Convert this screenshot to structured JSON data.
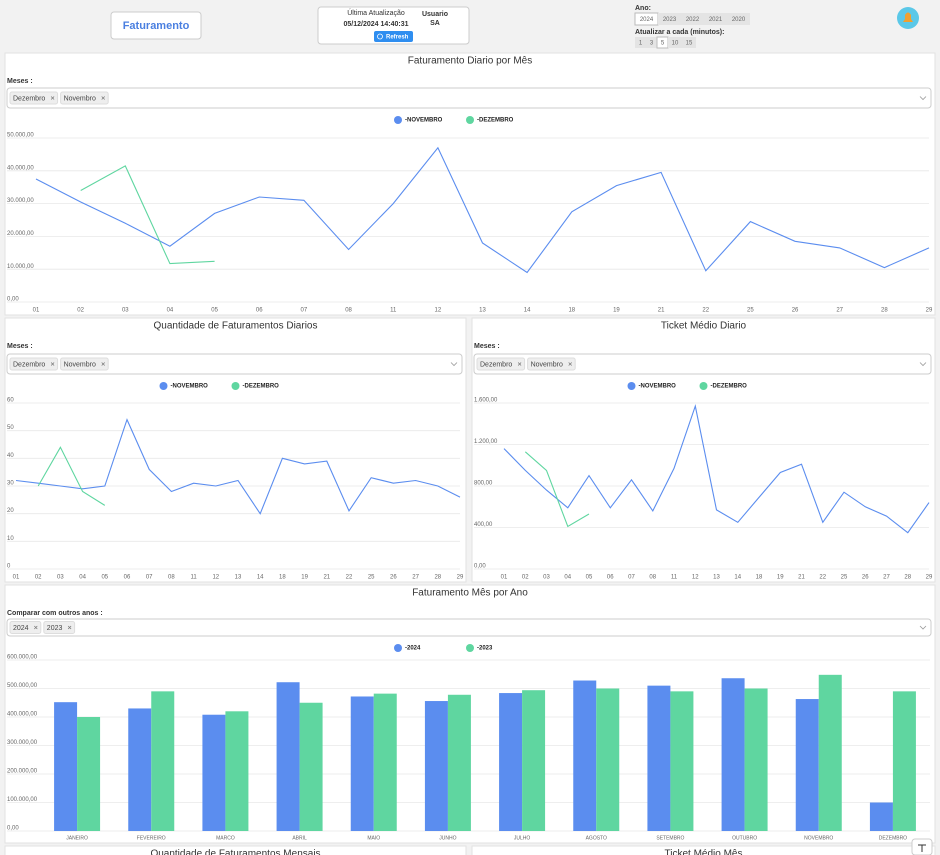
{
  "header": {
    "app_button": "Faturamento",
    "update_label": "Última Atualização",
    "update_time": "05/12/2024 14:40:31",
    "user_label": "Usuario",
    "user": "SA",
    "refresh": "Refresh",
    "year_label": "Ano:",
    "years": [
      "2024",
      "2023",
      "2022",
      "2021",
      "2020"
    ],
    "year_selected": "2024",
    "interval_label": "Atualizar a cada (minutos):",
    "intervals": [
      1,
      3,
      5,
      10,
      15
    ],
    "interval_selected": 5
  },
  "chart_data": [
    {
      "type": "line",
      "title": "Faturamento Diario por Mês",
      "filter_label": "Meses :",
      "filter_chips": [
        "Dezembro",
        "Novembro"
      ],
      "categories": [
        "01",
        "02",
        "03",
        "04",
        "05",
        "06",
        "07",
        "08",
        "11",
        "12",
        "13",
        "14",
        "18",
        "19",
        "21",
        "22",
        "25",
        "26",
        "27",
        "28",
        "29"
      ],
      "series": [
        {
          "name": "-NOVEMBRO",
          "color": "#5b8def",
          "values": [
            37500,
            30500,
            24000,
            17000,
            27000,
            32000,
            31000,
            16000,
            30000,
            47000,
            18000,
            9000,
            27500,
            35500,
            39500,
            9500,
            24500,
            18500,
            16500,
            10500,
            16500
          ]
        },
        {
          "name": "-DEZEMBRO",
          "color": "#5fd6a0",
          "values": [
            null,
            34000,
            41500,
            11700,
            12400,
            null,
            null,
            null,
            null,
            null,
            null,
            null,
            null,
            null,
            null,
            null,
            null,
            null,
            null,
            null,
            null
          ]
        }
      ],
      "ylim": [
        0,
        50000
      ],
      "yticks": [
        {
          "value": 0,
          "label": "0,00"
        },
        {
          "value": 10000,
          "label": "10.000,00"
        },
        {
          "value": 20000,
          "label": "20.000,00"
        },
        {
          "value": 30000,
          "label": "30.000,00"
        },
        {
          "value": 40000,
          "label": "40.000,00"
        },
        {
          "value": 50000,
          "label": "50.000,00"
        }
      ],
      "grid": true,
      "legend": "top"
    },
    {
      "type": "line",
      "title": "Quantidade de Faturamentos Diarios",
      "filter_label": "Meses :",
      "filter_chips": [
        "Dezembro",
        "Novembro"
      ],
      "categories": [
        "01",
        "02",
        "03",
        "04",
        "05",
        "06",
        "07",
        "08",
        "11",
        "12",
        "13",
        "14",
        "18",
        "19",
        "21",
        "22",
        "25",
        "26",
        "27",
        "28",
        "29"
      ],
      "series": [
        {
          "name": "-NOVEMBRO",
          "color": "#5b8def",
          "values": [
            32,
            31,
            30,
            29,
            30,
            54,
            36,
            28,
            31,
            30,
            32,
            20,
            40,
            38,
            39,
            21,
            33,
            31,
            32,
            30,
            26
          ]
        },
        {
          "name": "-DEZEMBRO",
          "color": "#5fd6a0",
          "values": [
            null,
            30,
            44,
            28,
            23,
            null,
            null,
            null,
            null,
            null,
            null,
            null,
            null,
            null,
            null,
            null,
            null,
            null,
            null,
            null,
            null
          ]
        }
      ],
      "ylim": [
        0,
        60
      ],
      "yticks": [
        0,
        10,
        20,
        30,
        40,
        50,
        60
      ],
      "grid": true,
      "legend": "top"
    },
    {
      "type": "line",
      "title": "Ticket Médio Diario",
      "filter_label": "Meses :",
      "filter_chips": [
        "Dezembro",
        "Novembro"
      ],
      "categories": [
        "01",
        "02",
        "03",
        "04",
        "05",
        "06",
        "07",
        "08",
        "11",
        "12",
        "13",
        "14",
        "18",
        "19",
        "21",
        "22",
        "25",
        "26",
        "27",
        "28",
        "29"
      ],
      "series": [
        {
          "name": "-NOVEMBRO",
          "color": "#5b8def",
          "values": [
            1160,
            950,
            760,
            590,
            900,
            590,
            860,
            560,
            970,
            1570,
            570,
            450,
            690,
            930,
            1010,
            450,
            740,
            600,
            510,
            350,
            640
          ]
        },
        {
          "name": "-DEZEMBRO",
          "color": "#5fd6a0",
          "values": [
            null,
            1130,
            950,
            410,
            530,
            null,
            null,
            null,
            null,
            null,
            null,
            null,
            null,
            null,
            null,
            null,
            null,
            null,
            null,
            null,
            null
          ]
        }
      ],
      "ylim": [
        0,
        1600
      ],
      "yticks": [
        {
          "value": 0,
          "label": "0,00"
        },
        {
          "value": 400,
          "label": "400,00"
        },
        {
          "value": 800,
          "label": "800,00"
        },
        {
          "value": 1200,
          "label": "1.200,00"
        },
        {
          "value": 1600,
          "label": "1.600,00"
        }
      ],
      "grid": true,
      "legend": "top"
    },
    {
      "type": "bar",
      "title": "Faturamento Mês por Ano",
      "filter_label": "Comparar com outros anos :",
      "filter_chips": [
        "2024",
        "2023"
      ],
      "categories": [
        "JANEIRO",
        "FEVEREIRO",
        "MARCO",
        "ABRIL",
        "MAIO",
        "JUNHO",
        "JULHO",
        "AGOSTO",
        "SETEMBRO",
        "OUTUBRO",
        "NOVEMBRO",
        "DEZEMBRO"
      ],
      "series": [
        {
          "name": "-2024",
          "color": "#5b8def",
          "values": [
            452000,
            430000,
            408000,
            522000,
            472000,
            456000,
            484000,
            528000,
            510000,
            536000,
            463000,
            100000
          ]
        },
        {
          "name": "-2023",
          "color": "#5fd6a0",
          "values": [
            400000,
            490000,
            420000,
            450000,
            482000,
            478000,
            494000,
            500000,
            490000,
            500000,
            548000,
            490000
          ]
        }
      ],
      "ylim": [
        0,
        600000
      ],
      "yticks": [
        {
          "value": 0,
          "label": "0,00"
        },
        {
          "value": 100000,
          "label": "100.000,00"
        },
        {
          "value": 200000,
          "label": "200.000,00"
        },
        {
          "value": 300000,
          "label": "300.000,00"
        },
        {
          "value": 400000,
          "label": "400.000,00"
        },
        {
          "value": 500000,
          "label": "500.000,00"
        },
        {
          "value": 600000,
          "label": "600.000,00"
        }
      ],
      "grid": true,
      "legend": "top"
    }
  ],
  "lower_panels": [
    {
      "title": "Quantidade de Faturamentos Mensais"
    },
    {
      "title": "Ticket Médio Mês"
    }
  ]
}
